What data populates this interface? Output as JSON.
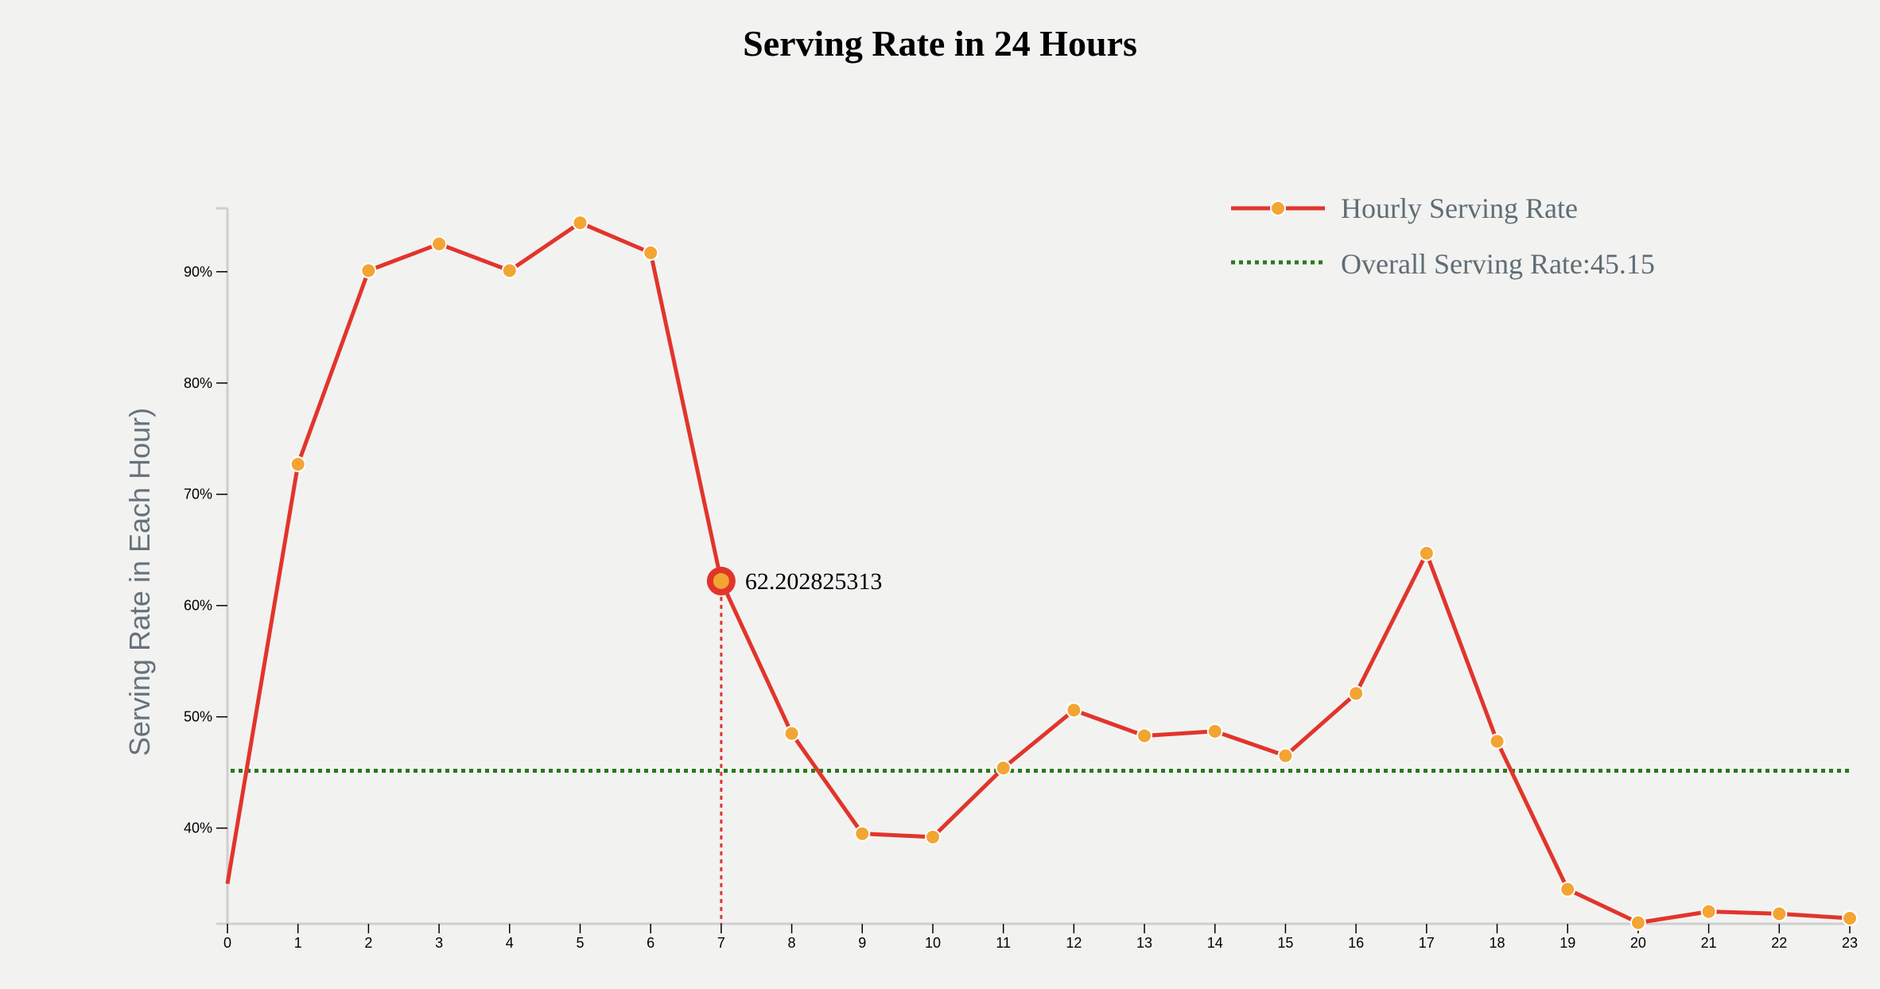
{
  "chart_data": {
    "type": "line",
    "title": "Serving Rate in 24 Hours",
    "ylabel": "Serving Rate in Each Hour)",
    "xlabel": "",
    "x": [
      0,
      1,
      2,
      3,
      4,
      5,
      6,
      7,
      8,
      9,
      10,
      11,
      12,
      13,
      14,
      15,
      16,
      17,
      18,
      19,
      20,
      21,
      22,
      23
    ],
    "y_ticks": [
      40,
      50,
      60,
      70,
      80,
      90
    ],
    "y_tick_labels": [
      "40%",
      "50%",
      "60%",
      "70%",
      "80%",
      "90%"
    ],
    "ylim": [
      31.4,
      95.7
    ],
    "series": [
      {
        "name": "Hourly Serving Rate",
        "color": "#e1352b",
        "marker_color": "#f2a533",
        "values": [
          35.0,
          72.7,
          90.1,
          92.5,
          90.1,
          94.4,
          91.7,
          62.202825313,
          48.5,
          39.5,
          39.2,
          45.4,
          50.6,
          48.3,
          48.7,
          46.5,
          52.1,
          64.7,
          47.8,
          34.5,
          31.5,
          32.5,
          32.3,
          31.9
        ]
      }
    ],
    "reference_line": {
      "name": "Overall Serving Rate:45.15",
      "value": 45.15,
      "color": "#2a7a1b",
      "style": "dotted"
    },
    "highlight": {
      "x": 7,
      "value_label": "62.202825313",
      "color": "#e1352b"
    },
    "legend_position": "top-right",
    "grid": false
  }
}
